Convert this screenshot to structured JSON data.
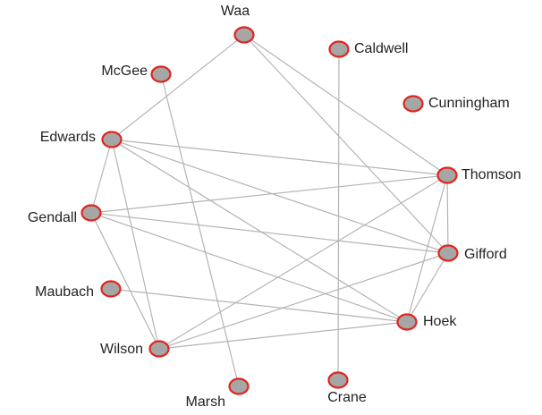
{
  "nodes": [
    {
      "label": "Waa"
    },
    {
      "label": "Caldwell"
    },
    {
      "label": "McGee"
    },
    {
      "label": "Cunningham"
    },
    {
      "label": "Edwards"
    },
    {
      "label": "Thomson"
    },
    {
      "label": "Gendall"
    },
    {
      "label": "Gifford"
    },
    {
      "label": "Maubach"
    },
    {
      "label": "Hoek"
    },
    {
      "label": "Wilson"
    },
    {
      "label": "Marsh"
    },
    {
      "label": "Crane"
    }
  ],
  "edges": [
    [
      0,
      4
    ],
    [
      0,
      5
    ],
    [
      0,
      7
    ],
    [
      1,
      12
    ],
    [
      2,
      11
    ],
    [
      4,
      5
    ],
    [
      4,
      7
    ],
    [
      4,
      9
    ],
    [
      4,
      6
    ],
    [
      4,
      10
    ],
    [
      6,
      5
    ],
    [
      6,
      7
    ],
    [
      6,
      9
    ],
    [
      6,
      10
    ],
    [
      8,
      9
    ],
    [
      10,
      5
    ],
    [
      10,
      7
    ],
    [
      10,
      9
    ],
    [
      5,
      7
    ],
    [
      5,
      9
    ],
    [
      7,
      9
    ]
  ]
}
